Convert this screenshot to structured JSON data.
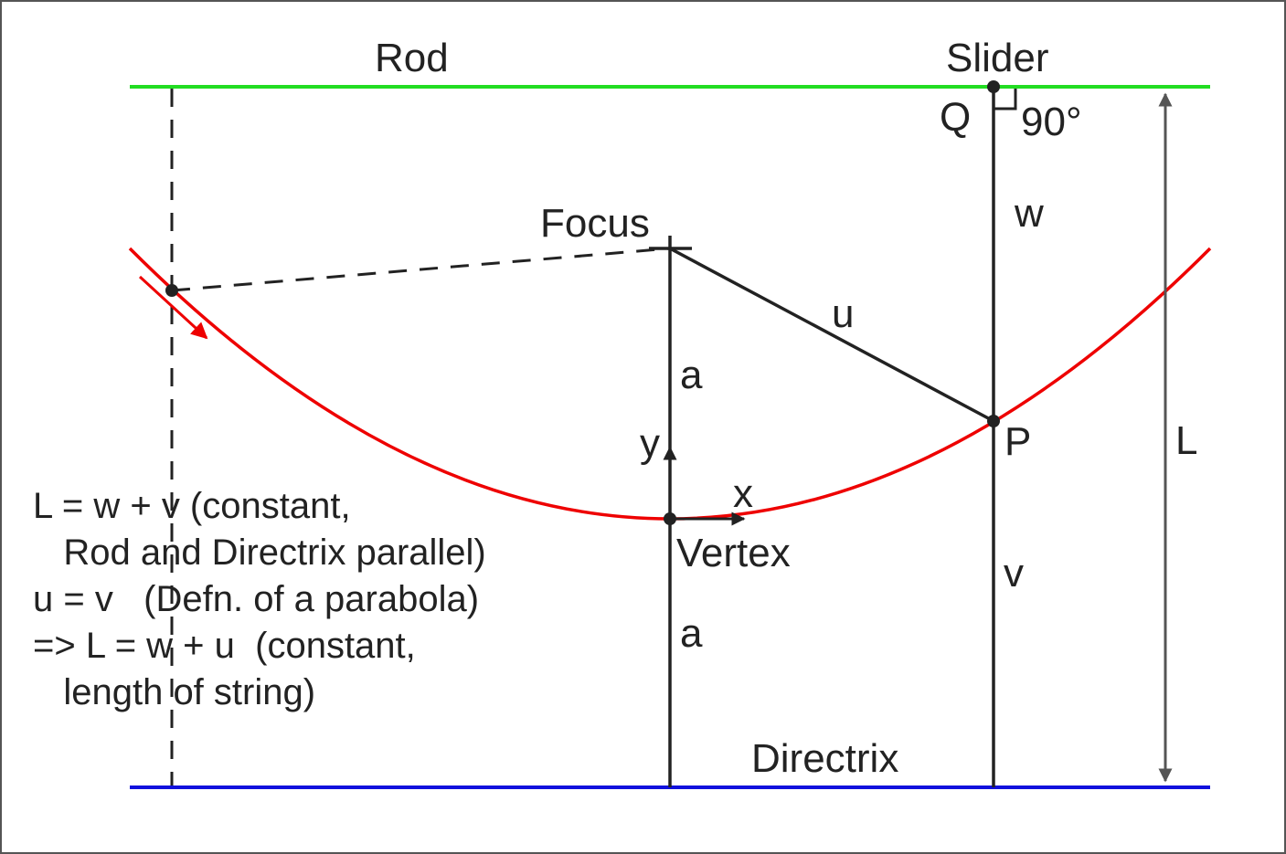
{
  "labels": {
    "rod": "Rod",
    "slider": "Slider",
    "q": "Q",
    "angle": "90°",
    "focus": "Focus",
    "w": "w",
    "u": "u",
    "a_upper": "a",
    "y": "y",
    "p": "P",
    "l": "L",
    "x": "x",
    "vertex": "Vertex",
    "v": "v",
    "a_lower": "a",
    "directrix": "Directrix"
  },
  "equations": [
    "L = w + v (constant,",
    "   Rod and Directrix parallel)",
    "u = v   (Defn. of a parabola)",
    "=> L = w + u  (constant,",
    "   length of string)"
  ],
  "colors": {
    "rod": "#22dd22",
    "directrix": "#1111dd",
    "parabola": "#ee0000",
    "ink": "#222222",
    "measure": "#555555"
  }
}
